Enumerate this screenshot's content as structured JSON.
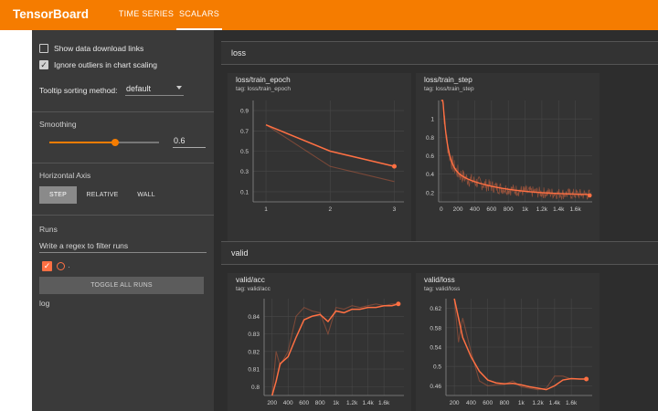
{
  "app": {
    "title": "TensorBoard"
  },
  "nav": {
    "tabs": [
      {
        "label": "TIME SERIES"
      },
      {
        "label": "SCALARS"
      }
    ]
  },
  "sidebar": {
    "show_download": "Show data download links",
    "ignore_outliers": "Ignore outliers in chart scaling",
    "tooltip_label": "Tooltip sorting method:",
    "tooltip_value": "default",
    "smoothing_label": "Smoothing",
    "smoothing_value": "0.6",
    "smoothing_fraction": 0.6,
    "axis_label": "Horizontal Axis",
    "axis_options": [
      "STEP",
      "RELATIVE",
      "WALL"
    ],
    "runs_label": "Runs",
    "runs_filter_placeholder": "Write a regex to filter runs",
    "run_dot": "·",
    "toggle_all": "TOGGLE ALL RUNS",
    "run_name": "log"
  },
  "groups": [
    {
      "name": "loss"
    },
    {
      "name": "valid"
    }
  ],
  "colors": {
    "accent": "#f57c00",
    "line": "#ff7043",
    "icon": "#42a5f5"
  },
  "icons": {
    "expand": "fullscreen-icon",
    "list": "data-table-icon",
    "fit": "fit-domain-icon"
  },
  "chart_data": [
    {
      "type": "line",
      "title": "loss/train_epoch",
      "tag": "tag: loss/train_epoch",
      "x": [
        1,
        2,
        3
      ],
      "series": [
        {
          "name": "smoothed",
          "values": [
            0.76,
            0.5,
            0.35
          ]
        },
        {
          "name": "raw",
          "values": [
            0.76,
            0.35,
            0.2
          ]
        }
      ],
      "xticks": [
        "1",
        "2",
        "3"
      ],
      "yticks": [
        "0.9",
        "0.7",
        "0.5",
        "0.3",
        "0.1"
      ],
      "xlim": [
        0.8,
        3.15
      ],
      "ylim": [
        0.0,
        1.0
      ]
    },
    {
      "type": "line",
      "title": "loss/train_step",
      "tag": "tag: loss/train_step",
      "xticks": [
        "0",
        "200",
        "400",
        "600",
        "800",
        "1k",
        "1.2k",
        "1.4k",
        "1.6k"
      ],
      "yticks": [
        "1",
        "0.8",
        "0.6",
        "0.4",
        "0.2"
      ],
      "xlim": [
        -30,
        1800
      ],
      "ylim": [
        0.1,
        1.2
      ],
      "end_value": 0.17
    },
    {
      "type": "line",
      "title": "valid/acc",
      "tag": "tag: valid/acc",
      "x": [
        200,
        250,
        300,
        400,
        500,
        600,
        700,
        800,
        900,
        1000,
        1100,
        1200,
        1300,
        1400,
        1500,
        1600,
        1700,
        1780
      ],
      "series": [
        {
          "name": "smoothed",
          "values": [
            0.795,
            0.803,
            0.813,
            0.817,
            0.828,
            0.838,
            0.84,
            0.841,
            0.837,
            0.843,
            0.842,
            0.844,
            0.844,
            0.845,
            0.845,
            0.846,
            0.846,
            0.847
          ]
        },
        {
          "name": "raw",
          "values": [
            0.795,
            0.82,
            0.812,
            0.82,
            0.84,
            0.845,
            0.843,
            0.842,
            0.83,
            0.845,
            0.844,
            0.846,
            0.845,
            0.846,
            0.847,
            0.846,
            0.847,
            0.847
          ]
        }
      ],
      "xticks": [
        "200",
        "400",
        "600",
        "800",
        "1k",
        "1.2k",
        "1.4k",
        "1.6k"
      ],
      "yticks": [
        "0.84",
        "0.83",
        "0.82",
        "0.81",
        "0.8"
      ],
      "xlim": [
        100,
        1850
      ],
      "ylim": [
        0.795,
        0.85
      ]
    },
    {
      "type": "line",
      "title": "valid/loss",
      "tag": "tag: valid/loss",
      "x": [
        200,
        250,
        300,
        400,
        500,
        600,
        700,
        800,
        900,
        1000,
        1100,
        1200,
        1300,
        1400,
        1500,
        1600,
        1700,
        1780
      ],
      "series": [
        {
          "name": "smoothed",
          "values": [
            0.64,
            0.6,
            0.56,
            0.52,
            0.49,
            0.472,
            0.466,
            0.464,
            0.465,
            0.462,
            0.458,
            0.455,
            0.452,
            0.46,
            0.472,
            0.475,
            0.474,
            0.474
          ]
        },
        {
          "name": "raw",
          "values": [
            0.64,
            0.55,
            0.6,
            0.53,
            0.47,
            0.46,
            0.462,
            0.463,
            0.47,
            0.458,
            0.455,
            0.452,
            0.455,
            0.48,
            0.48,
            0.474,
            0.474,
            0.474
          ]
        }
      ],
      "xticks": [
        "200",
        "400",
        "600",
        "800",
        "1k",
        "1.2k",
        "1.4k",
        "1.6k"
      ],
      "yticks": [
        "0.62",
        "0.58",
        "0.54",
        "0.5",
        "0.46"
      ],
      "xlim": [
        100,
        1850
      ],
      "ylim": [
        0.44,
        0.64
      ]
    }
  ]
}
